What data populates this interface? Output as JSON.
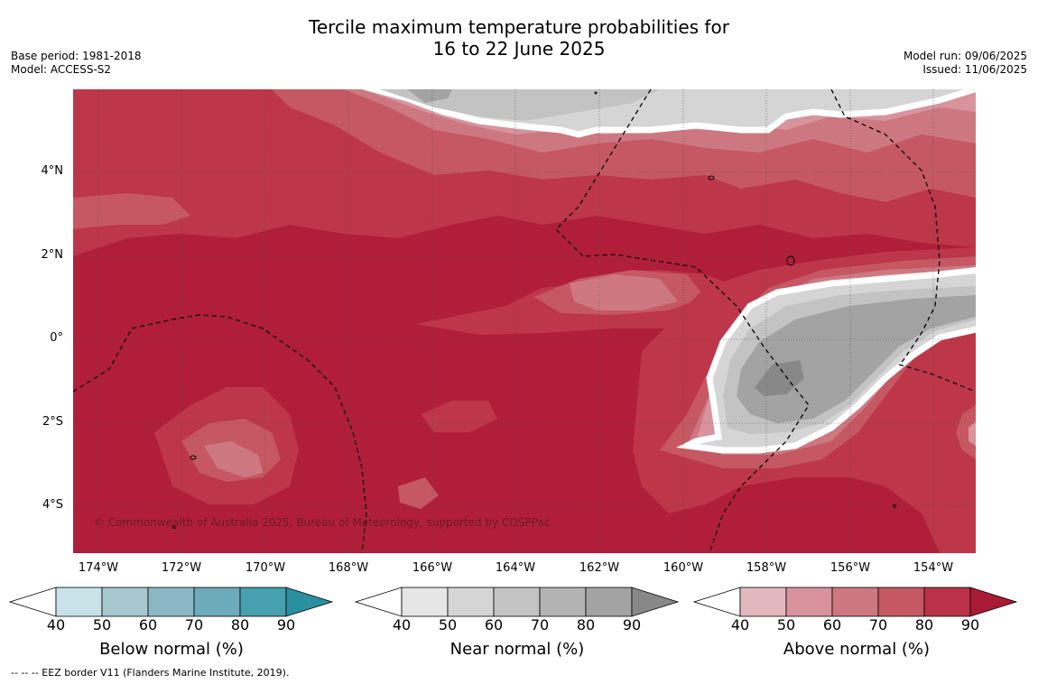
{
  "title": {
    "line1": "Tercile maximum temperature probabilities for",
    "line2": "16 to 22 June 2025"
  },
  "meta_left": {
    "base_period": "Base period: 1981-2018",
    "model": "Model: ACCESS-S2"
  },
  "meta_right": {
    "model_run": "Model run: 09/06/2025",
    "issued": "Issued: 11/06/2025"
  },
  "lat_labels": [
    "4°N",
    "2°N",
    "0°",
    "2°S",
    "4°S"
  ],
  "lon_labels": [
    "174°W",
    "172°W",
    "170°W",
    "168°W",
    "166°W",
    "164°W",
    "162°W",
    "160°W",
    "158°W",
    "156°W",
    "154°W"
  ],
  "copyright": "© Commonwealth of Australia 2025, Bureau of Meteorology, supported by COSPPac",
  "colorbars": [
    {
      "title": "Below normal (%)",
      "ticks": [
        "40",
        "50",
        "60",
        "70",
        "80",
        "90"
      ],
      "colors": [
        "#ffffff",
        "#c8e2e8",
        "#a8c8cf",
        "#8cb8c5",
        "#6cabb9",
        "#46a0ae",
        "#2a8fa0"
      ]
    },
    {
      "title": "Near normal (%)",
      "ticks": [
        "40",
        "50",
        "60",
        "70",
        "80",
        "90"
      ],
      "colors": [
        "#ffffff",
        "#e6e6e6",
        "#d5d5d5",
        "#c3c3c3",
        "#b3b3b3",
        "#a3a3a3",
        "#888888"
      ]
    },
    {
      "title": "Above normal (%)",
      "ticks": [
        "40",
        "50",
        "60",
        "70",
        "80",
        "90"
      ],
      "colors": [
        "#ffffff",
        "#e2b8be",
        "#d8939c",
        "#cd7880",
        "#c55862",
        "#b93247",
        "#aa1a35"
      ]
    }
  ],
  "footer": "--  --  -- EEZ border V11 (Flanders Marine Institute, 2019)."
}
